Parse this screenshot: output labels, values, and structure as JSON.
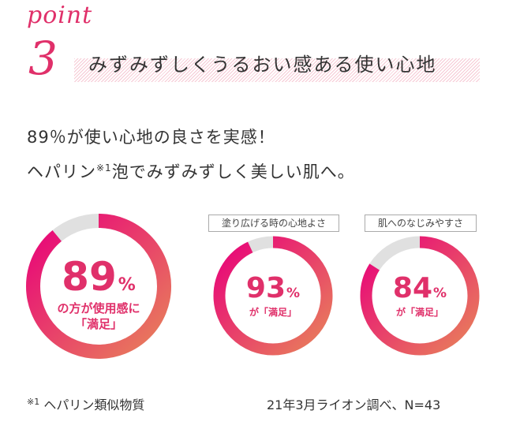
{
  "point": {
    "word": "point",
    "number": "3"
  },
  "heading": "みずみずしくうるおい感ある使い心地",
  "lead": {
    "line1": "89％が使い心地の良さを実感！",
    "line2_pre": "ヘパリン",
    "line2_note": "※1",
    "line2_post": "泡でみずみずしく美しい肌へ。"
  },
  "rings": [
    {
      "value": 89,
      "number": "89",
      "unit": "%",
      "caption_line1": "の方が使用感に",
      "caption_line2": "「満足」",
      "tag": ""
    },
    {
      "value": 93,
      "number": "93",
      "unit": "%",
      "caption_line1": "が「満足」",
      "caption_line2": "",
      "tag": "塗り広げる時の心地よさ"
    },
    {
      "value": 84,
      "number": "84",
      "unit": "%",
      "caption_line1": "が「満足」",
      "caption_line2": "",
      "tag": "肌へのなじみやすさ"
    }
  ],
  "footnote": {
    "mark": "※1",
    "text": "ヘパリン類似物質"
  },
  "source": "21年3月ライオン調べ、N=43",
  "colors": {
    "accent": "#e0306a",
    "gradient_start": "#e8007a",
    "gradient_end": "#e8825a",
    "track": "#e0e0e0"
  }
}
